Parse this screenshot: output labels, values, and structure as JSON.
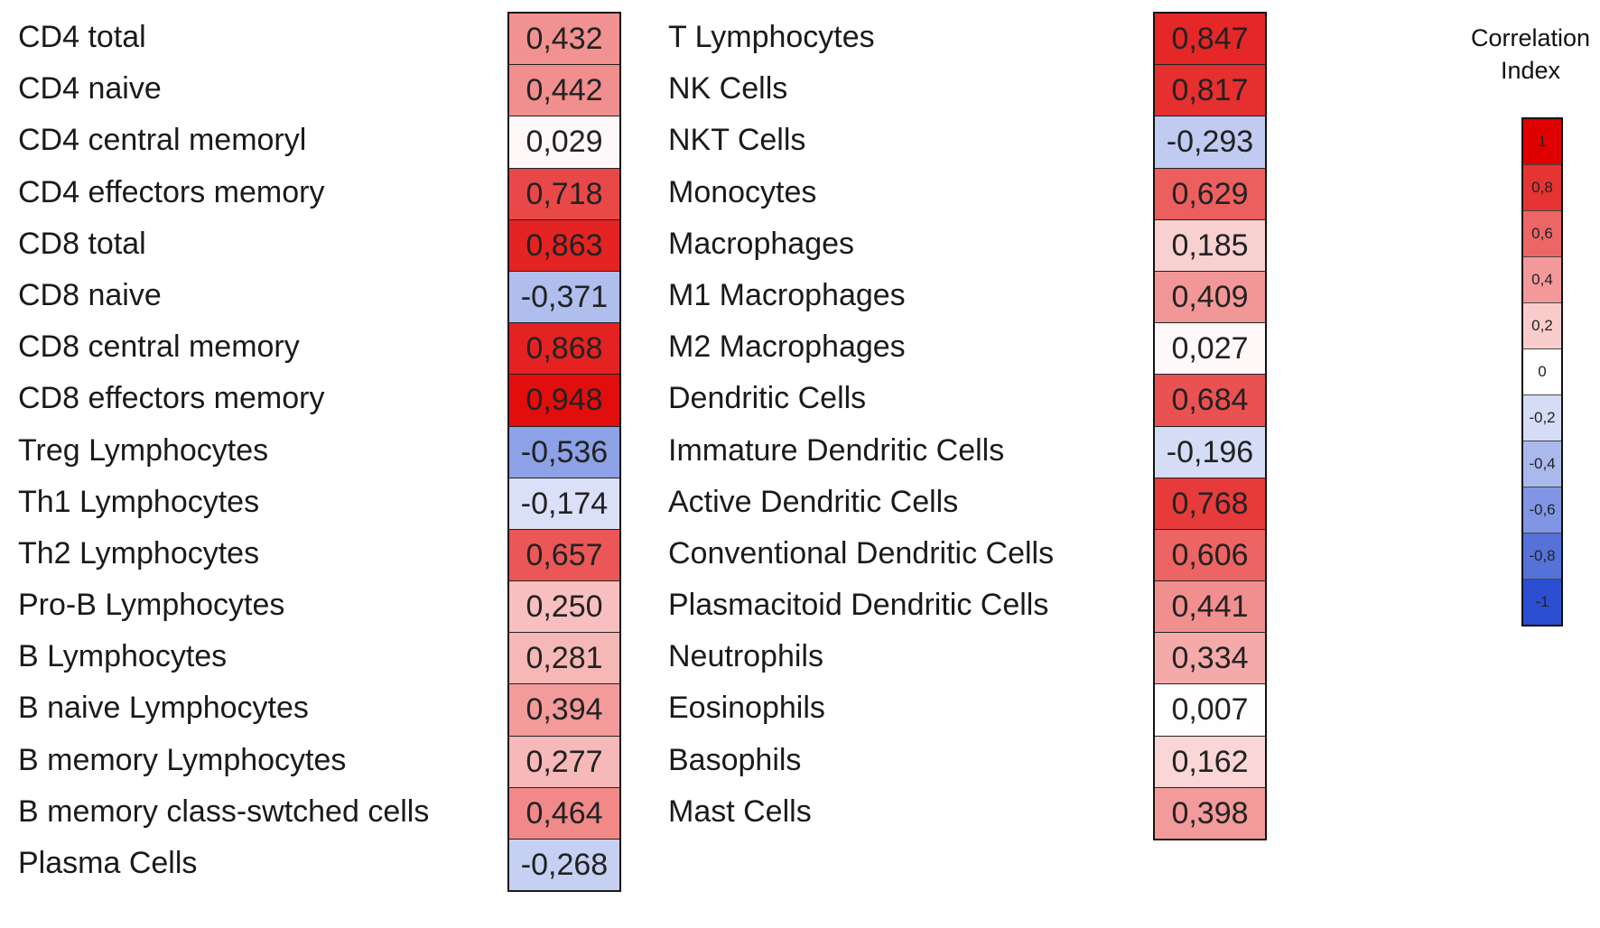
{
  "chart_data": {
    "type": "heatmap",
    "panels": [
      {
        "rows": [
          {
            "label": "CD4 total",
            "value": "0,432"
          },
          {
            "label": "CD4 naive",
            "value": "0,442"
          },
          {
            "label": "CD4 central memoryl",
            "value": "0,029"
          },
          {
            "label": "CD4 effectors memory",
            "value": "0,718"
          },
          {
            "label": "CD8 total",
            "value": "0,863"
          },
          {
            "label": "CD8 naive",
            "value": "-0,371"
          },
          {
            "label": "CD8 central memory",
            "value": "0,868"
          },
          {
            "label": "CD8 effectors memory",
            "value": "0,948"
          },
          {
            "label": "Treg Lymphocytes",
            "value": "-0,536"
          },
          {
            "label": "Th1 Lymphocytes",
            "value": "-0,174"
          },
          {
            "label": "Th2 Lymphocytes",
            "value": "0,657"
          },
          {
            "label": "Pro-B Lymphocytes",
            "value": "0,250"
          },
          {
            "label": "B Lymphocytes",
            "value": "0,281"
          },
          {
            "label": "B naive Lymphocytes",
            "value": "0,394"
          },
          {
            "label": "B memory Lymphocytes",
            "value": "0,277"
          },
          {
            "label": "B memory class-swtched cells",
            "value": "0,464"
          },
          {
            "label": "Plasma Cells",
            "value": "-0,268"
          }
        ]
      },
      {
        "rows": [
          {
            "label": "T Lymphocytes",
            "value": "0,847"
          },
          {
            "label": "NK Cells",
            "value": "0,817"
          },
          {
            "label": "NKT Cells",
            "value": "-0,293"
          },
          {
            "label": "Monocytes",
            "value": "0,629"
          },
          {
            "label": "Macrophages",
            "value": "0,185"
          },
          {
            "label": "M1 Macrophages",
            "value": "0,409"
          },
          {
            "label": "M2 Macrophages",
            "value": "0,027"
          },
          {
            "label": "Dendritic Cells",
            "value": "0,684"
          },
          {
            "label": "Immature Dendritic Cells",
            "value": "-0,196"
          },
          {
            "label": "Active Dendritic Cells",
            "value": "0,768"
          },
          {
            "label": "Conventional Dendritic Cells",
            "value": "0,606"
          },
          {
            "label": "Plasmacitoid Dendritic Cells",
            "value": "0,441"
          },
          {
            "label": "Neutrophils",
            "value": "0,334"
          },
          {
            "label": "Eosinophils",
            "value": "0,007"
          },
          {
            "label": "Basophils",
            "value": "0,162"
          },
          {
            "label": "Mast Cells",
            "value": "0,398"
          }
        ]
      }
    ],
    "value_range": [
      -1,
      1
    ],
    "legend": {
      "title": "Correlation Index",
      "placement": "top-right",
      "ticks": [
        "1",
        "0,8",
        "0,6",
        "0,4",
        "0,2",
        "0",
        "-0,2",
        "-0,4",
        "-0,6",
        "-0,8",
        "-1"
      ]
    },
    "colors": {
      "positive": "#e00000",
      "neutral": "#ffffff",
      "negative": "#2b4fd0"
    }
  }
}
